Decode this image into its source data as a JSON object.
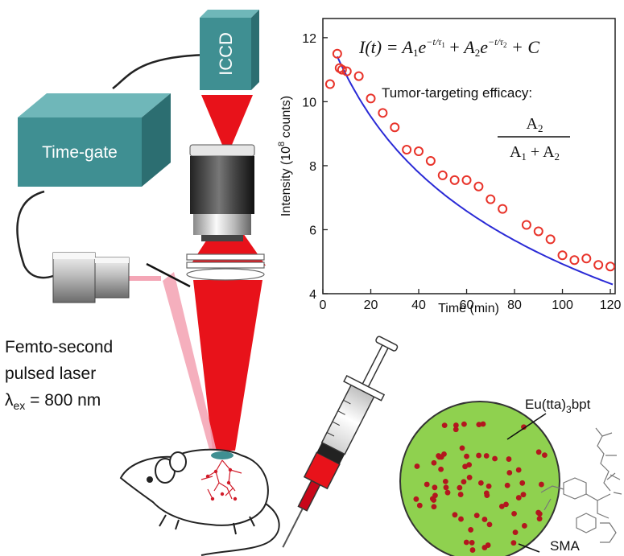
{
  "labels": {
    "iccd": "ICCD",
    "time_gate": "Time-gate",
    "laser_line1": "Femto-second",
    "laser_line2": "pulsed laser",
    "lambda_symbol": "λ",
    "lambda_sub": "ex",
    "lambda_value": " = 800 nm",
    "complex": "Eu(tta)",
    "complex_sub": "3",
    "complex_suffix": "bpt",
    "sma": "SMA"
  },
  "equation": {
    "lhs": "I(t) = ",
    "term1": "A",
    "term1_sub": "1",
    "exp1": "e",
    "exp1_sup": "−t/τ",
    "exp1_sup_sub": "1",
    "plus1": " + ",
    "term2": "A",
    "term2_sub": "2",
    "exp2": "e",
    "exp2_sup": "−t/τ",
    "exp2_sup_sub": "2",
    "plus2": " + C"
  },
  "efficacy": {
    "label": "Tumor-targeting efficacy:",
    "numerator": "A",
    "numerator_sub": "2",
    "denominator_a": "A",
    "denominator_a_sub": "1",
    "denominator_plus": " + ",
    "denominator_b": "A",
    "denominator_b_sub": "2"
  },
  "chart_data": {
    "type": "scatter",
    "xlabel": "Time (min)",
    "ylabel_main": "Intensity (10",
    "ylabel_sup": "8",
    "ylabel_end": " counts)",
    "xlim": [
      0,
      122
    ],
    "ylim": [
      4,
      12.6
    ],
    "xticks": [
      0,
      20,
      40,
      60,
      80,
      100,
      120
    ],
    "yticks": [
      4,
      6,
      8,
      10,
      12
    ],
    "points": [
      [
        3,
        10.55
      ],
      [
        6,
        11.5
      ],
      [
        7,
        11.05
      ],
      [
        8,
        11.0
      ],
      [
        10,
        10.95
      ],
      [
        15,
        10.8
      ],
      [
        20,
        10.1
      ],
      [
        25,
        9.65
      ],
      [
        30,
        9.2
      ],
      [
        35,
        8.5
      ],
      [
        40,
        8.45
      ],
      [
        45,
        8.15
      ],
      [
        50,
        7.7
      ],
      [
        55,
        7.55
      ],
      [
        60,
        7.55
      ],
      [
        65,
        7.35
      ],
      [
        70,
        6.95
      ],
      [
        75,
        6.65
      ],
      [
        85,
        6.15
      ],
      [
        90,
        5.95
      ],
      [
        95,
        5.7
      ],
      [
        100,
        5.2
      ],
      [
        105,
        5.05
      ],
      [
        110,
        5.1
      ],
      [
        115,
        4.9
      ],
      [
        120,
        4.85
      ]
    ],
    "fit": {
      "A1": 2.5,
      "tau1": 20,
      "A2": 9.0,
      "tau2": 120,
      "C": 1.0,
      "t_start": 6
    },
    "colors": {
      "points": "#e8332a",
      "fit": "#2a2ad6",
      "axis": "#222222"
    }
  },
  "colors": {
    "beam": "#e8121a",
    "beam_dark": "#b30a10",
    "pink_beam": "#f4a6b6",
    "box_face": "#3f8f92",
    "box_top": "#6fb7b9",
    "box_side": "#2c6e71",
    "nanoparticle": "#8fd14f",
    "dots": "#b3171e"
  }
}
